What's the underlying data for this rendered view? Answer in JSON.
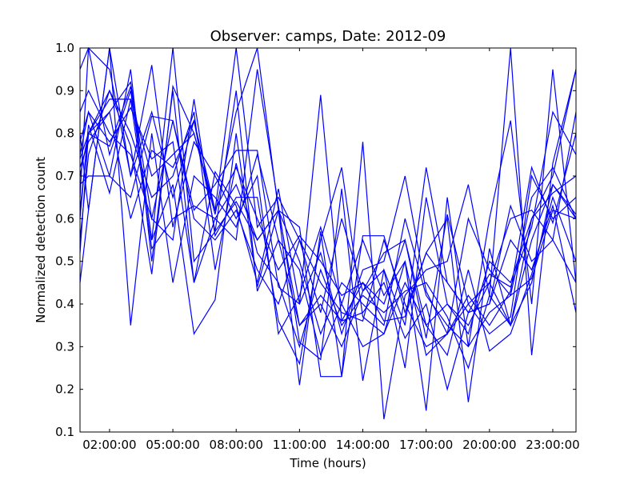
{
  "chart_data": {
    "type": "line",
    "title": "Observer: camps, Date: 2012-09",
    "xlabel": "Time (hours)",
    "ylabel": "Normalized detection count",
    "xlim": [
      0.6,
      24.1
    ],
    "ylim": [
      0.1,
      1.0
    ],
    "x_ticks": [
      2,
      5,
      8,
      11,
      14,
      17,
      20,
      23
    ],
    "x_tick_labels": [
      "02:00:00",
      "05:00:00",
      "08:00:00",
      "11:00:00",
      "14:00:00",
      "17:00:00",
      "20:00:00",
      "23:00:00"
    ],
    "y_ticks": [
      0.1,
      0.2,
      0.3,
      0.4,
      0.5,
      0.6,
      0.7,
      0.8,
      0.9,
      1.0
    ],
    "y_tick_labels": [
      "0.1",
      "0.2",
      "0.3",
      "0.4",
      "0.5",
      "0.6",
      "0.7",
      "0.8",
      "0.9",
      "1.0"
    ],
    "line_color": "#0000ff",
    "grid": false,
    "x": [
      0.6,
      1,
      2,
      3,
      4,
      5,
      6,
      7,
      8,
      9,
      10,
      11,
      12,
      13,
      14,
      15,
      16,
      17,
      18,
      19,
      20,
      21,
      22,
      23,
      24.1
    ],
    "series": [
      {
        "values": [
          0.95,
          1.0,
          0.95,
          0.7,
          0.85,
          0.65,
          0.83,
          0.62,
          0.72,
          0.6,
          0.48,
          0.56,
          0.5,
          0.42,
          0.45,
          0.4,
          0.55,
          0.35,
          0.4,
          0.33,
          0.5,
          0.45,
          0.6,
          0.7,
          0.95
        ]
      },
      {
        "values": [
          0.85,
          0.9,
          0.8,
          0.75,
          0.6,
          0.83,
          0.6,
          0.55,
          0.62,
          0.48,
          0.4,
          0.55,
          0.45,
          0.38,
          0.36,
          0.55,
          0.4,
          0.3,
          0.33,
          0.4,
          0.45,
          0.35,
          0.55,
          0.68,
          0.6
        ]
      },
      {
        "values": [
          0.75,
          0.85,
          0.7,
          0.95,
          0.5,
          0.9,
          0.45,
          0.6,
          0.68,
          0.55,
          0.62,
          0.35,
          0.4,
          0.3,
          0.43,
          0.48,
          0.25,
          0.65,
          0.4,
          0.35,
          0.45,
          0.6,
          0.62,
          0.55,
          0.85
        ]
      },
      {
        "values": [
          0.7,
          0.8,
          0.85,
          0.6,
          0.76,
          0.72,
          0.83,
          0.57,
          0.64,
          0.55,
          0.62,
          0.5,
          0.33,
          0.45,
          0.4,
          0.35,
          0.6,
          0.42,
          0.35,
          0.3,
          0.38,
          0.42,
          0.65,
          0.72,
          0.6
        ]
      },
      {
        "values": [
          0.65,
          1.0,
          0.75,
          0.9,
          0.55,
          1.0,
          0.5,
          0.57,
          0.9,
          0.43,
          0.55,
          0.35,
          0.42,
          0.36,
          0.38,
          0.45,
          0.32,
          0.4,
          0.2,
          0.38,
          0.4,
          0.55,
          0.48,
          0.63,
          0.38
        ]
      },
      {
        "values": [
          0.6,
          0.82,
          0.66,
          0.88,
          0.7,
          0.75,
          0.8,
          0.62,
          1.0,
          0.58,
          0.65,
          0.55,
          0.38,
          0.6,
          0.43,
          0.52,
          0.55,
          0.32,
          0.61,
          0.4,
          0.33,
          0.37,
          0.7,
          0.6,
          0.65
        ]
      },
      {
        "values": [
          0.55,
          0.75,
          0.9,
          0.8,
          0.65,
          0.7,
          0.85,
          0.48,
          0.73,
          0.52,
          0.45,
          0.3,
          0.48,
          0.35,
          0.42,
          0.38,
          0.43,
          0.45,
          0.37,
          0.25,
          0.42,
          0.35,
          0.6,
          0.66,
          0.7
        ]
      },
      {
        "values": [
          0.45,
          0.62,
          1.0,
          0.7,
          0.96,
          0.58,
          0.78,
          0.7,
          0.6,
          0.7,
          0.33,
          0.42,
          0.58,
          0.4,
          0.55,
          0.42,
          0.5,
          0.28,
          0.33,
          0.42,
          0.35,
          0.43,
          0.72,
          0.59,
          0.8
        ]
      },
      {
        "values": [
          0.8,
          0.62,
          1.0,
          0.35,
          0.8,
          0.45,
          0.7,
          0.65,
          0.58,
          0.75,
          0.55,
          0.48,
          0.28,
          0.4,
          0.3,
          0.33,
          0.45,
          0.35,
          0.28,
          0.48,
          0.29,
          0.33,
          0.47,
          0.65,
          0.5
        ]
      },
      {
        "values": [
          0.68,
          0.7,
          0.7,
          0.65,
          0.84,
          0.83,
          0.62,
          0.68,
          0.76,
          0.76,
          0.44,
          0.4,
          0.52,
          0.33,
          0.48,
          0.5,
          0.7,
          0.43,
          0.33,
          0.6,
          0.48,
          0.42,
          0.46,
          0.62,
          0.6
        ]
      },
      {
        "values": [
          0.72,
          0.78,
          0.85,
          0.92,
          0.6,
          0.55,
          0.88,
          0.56,
          0.65,
          0.65,
          0.36,
          0.26,
          0.55,
          0.72,
          0.37,
          0.33,
          0.5,
          0.15,
          0.65,
          0.3,
          0.6,
          0.83,
          0.4,
          0.95,
          0.45
        ]
      },
      {
        "values": [
          0.78,
          0.85,
          0.78,
          0.86,
          0.74,
          0.78,
          0.45,
          0.71,
          0.63,
          0.45,
          0.67,
          0.4,
          0.89,
          0.36,
          0.45,
          0.36,
          0.37,
          0.52,
          0.6,
          0.17,
          0.53,
          0.35,
          0.45,
          0.68,
          0.61
        ]
      },
      {
        "values": [
          0.62,
          0.8,
          0.88,
          0.88,
          0.53,
          0.6,
          0.63,
          0.6,
          0.55,
          0.95,
          0.63,
          0.31,
          0.27,
          0.67,
          0.22,
          0.48,
          0.35,
          0.72,
          0.45,
          0.38,
          0.4,
          0.63,
          0.5,
          0.55,
          0.45
        ]
      },
      {
        "values": [
          0.52,
          0.8,
          0.9,
          0.77,
          0.47,
          0.91,
          0.8,
          0.61,
          0.85,
          1.0,
          0.62,
          0.21,
          0.57,
          0.23,
          0.78,
          0.13,
          0.42,
          0.48,
          0.5,
          0.68,
          0.42,
          1.0,
          0.28,
          0.73,
          0.95
        ]
      },
      {
        "values": [
          0.74,
          0.8,
          0.77,
          0.91,
          0.55,
          0.68,
          0.33,
          0.41,
          0.8,
          0.44,
          0.62,
          0.58,
          0.23,
          0.23,
          0.56,
          0.56,
          0.38,
          0.52,
          0.45,
          0.38,
          0.47,
          0.44,
          0.58,
          0.85,
          0.75
        ]
      }
    ]
  }
}
